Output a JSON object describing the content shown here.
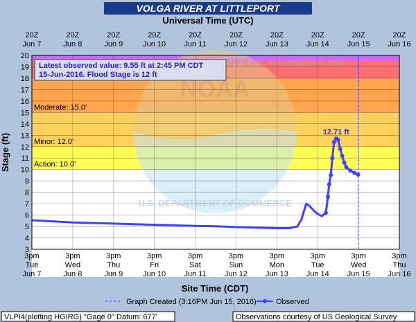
{
  "title": "VOLGA RIVER AT LITTLEPORT",
  "top_axis_title": "Universal Time (UTC)",
  "bottom_axis_title": "Site Time (CDT)",
  "y_axis_title": "Stage (ft)",
  "latest_line1": "Latest observed value: 9.55 ft at 2:45 PM CDT",
  "latest_line2": "15-Jun-2016. Flood Stage is 12 ft",
  "legend_created": "Graph Created (3:16PM Jun 15, 2016)",
  "legend_observed": "Observed",
  "footer_left": "VLPI4(plotting HGIRG) \"Gage 0\" Datum: 677'",
  "footer_right": "Observations courtesy of US Geological Survey",
  "watermark_logo": "NOAA",
  "watermark_top": "NATIONAL OCEANIC AND ATMOSPHERIC ADMINISTRATION",
  "watermark_bottom": "U.S. DEPARTMENT OF COMMERCE",
  "colors": {
    "title_bg": "#1a3a8a",
    "header_bg": "#b0c4de",
    "record": "#cc66ff",
    "major": "#ff6f6f",
    "moderate": "#ffa54f",
    "minor": "#ffd25e",
    "action": "#ffff55",
    "series": "#4040ff",
    "crest": "#2a2ae0"
  },
  "chart_data": {
    "type": "line",
    "title": "VOLGA RIVER AT LITTLEPORT",
    "xlabel": "Site Time (CDT)",
    "ylabel": "Stage (ft)",
    "ylim": [
      3,
      20
    ],
    "yticks": [
      3,
      4,
      5,
      6,
      7,
      8,
      9,
      10,
      11,
      12,
      13,
      14,
      15,
      16,
      17,
      18,
      19,
      20
    ],
    "xlim_days": [
      0,
      9
    ],
    "bottom_ticks": [
      {
        "day": 0,
        "time": "3pm",
        "dow": "Tue",
        "date": "Jun 7"
      },
      {
        "day": 1,
        "time": "3pm",
        "dow": "Wed",
        "date": "Jun 8"
      },
      {
        "day": 2,
        "time": "3pm",
        "dow": "Thu",
        "date": "Jun 9"
      },
      {
        "day": 3,
        "time": "3pm",
        "dow": "Fri",
        "date": "Jun 10"
      },
      {
        "day": 4,
        "time": "3pm",
        "dow": "Sat",
        "date": "Jun 11"
      },
      {
        "day": 5,
        "time": "3pm",
        "dow": "Sun",
        "date": "Jun 12"
      },
      {
        "day": 6,
        "time": "3pm",
        "dow": "Mon",
        "date": "Jun 13"
      },
      {
        "day": 7,
        "time": "3pm",
        "dow": "Tue",
        "date": "Jun 14"
      },
      {
        "day": 8,
        "time": "3pm",
        "dow": "Wed",
        "date": "Jun 15"
      },
      {
        "day": 9,
        "time": "3pm",
        "dow": "Thu",
        "date": "Jun 16"
      }
    ],
    "top_ticks": [
      {
        "day": 0,
        "time": "20Z",
        "date": "Jun 7"
      },
      {
        "day": 1,
        "time": "20Z",
        "date": "Jun 8"
      },
      {
        "day": 2,
        "time": "20Z",
        "date": "Jun 9"
      },
      {
        "day": 3,
        "time": "20Z",
        "date": "Jun 10"
      },
      {
        "day": 4,
        "time": "20Z",
        "date": "Jun 11"
      },
      {
        "day": 5,
        "time": "20Z",
        "date": "Jun 12"
      },
      {
        "day": 6,
        "time": "20Z",
        "date": "Jun 13"
      },
      {
        "day": 7,
        "time": "20Z",
        "date": "Jun 14"
      },
      {
        "day": 8,
        "time": "20Z",
        "date": "Jun 15"
      },
      {
        "day": 9,
        "time": "20Z",
        "date": "Jun 16"
      }
    ],
    "flood_categories": [
      {
        "label": "Action: 10.0'",
        "from": 10,
        "to": 12,
        "color": "#ffff55"
      },
      {
        "label": "Minor: 12.0'",
        "from": 12,
        "to": 15,
        "color": "#ffd25e"
      },
      {
        "label": "Moderate: 15.0'",
        "from": 15,
        "to": 18,
        "color": "#ffa54f"
      },
      {
        "label": "",
        "from": 18,
        "to": 19.55,
        "color": "#ff6f6f"
      },
      {
        "label": "",
        "from": 19.55,
        "to": 20,
        "color": "#cc66ff"
      }
    ],
    "graph_created_day": 7.99,
    "crest": {
      "day": 7.45,
      "value": 12.71,
      "label": "12.71 ft"
    },
    "series": [
      {
        "name": "Observed",
        "x": [
          0,
          0.5,
          1,
          1.5,
          2,
          2.5,
          3,
          3.5,
          4,
          4.5,
          5,
          5.5,
          6,
          6.3,
          6.5,
          6.6,
          6.72,
          6.8,
          6.9,
          7.0,
          7.1,
          7.2,
          7.25,
          7.28,
          7.32,
          7.36,
          7.4,
          7.45,
          7.5,
          7.55,
          7.6,
          7.65,
          7.7,
          7.8,
          7.9,
          7.99
        ],
        "values": [
          5.55,
          5.45,
          5.35,
          5.3,
          5.25,
          5.2,
          5.15,
          5.1,
          5.05,
          5.02,
          4.95,
          4.9,
          4.85,
          4.85,
          5.0,
          5.6,
          7.0,
          6.8,
          6.4,
          6.1,
          5.9,
          6.2,
          7.6,
          8.7,
          9.5,
          11.0,
          12.4,
          12.71,
          12.6,
          11.8,
          11.2,
          10.6,
          10.2,
          9.9,
          9.7,
          9.55
        ]
      }
    ]
  }
}
